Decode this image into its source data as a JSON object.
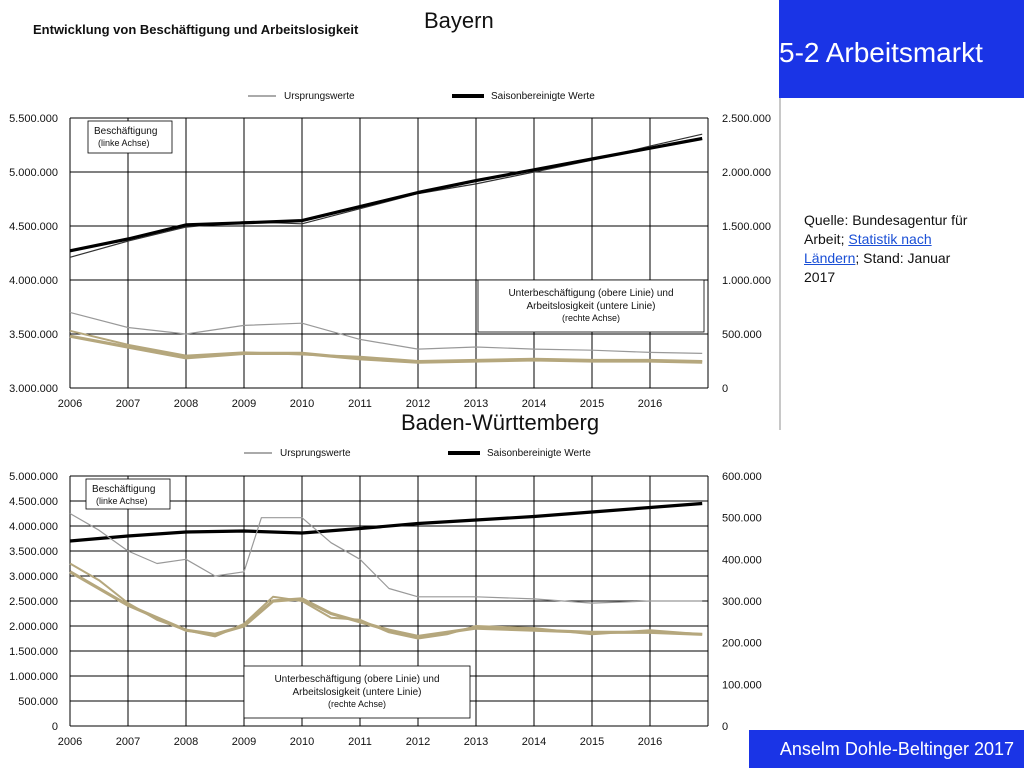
{
  "slide": {
    "title": "5-2 Arbeitsmarkt",
    "footer": "Anselm Dohle-Beltinger 2017",
    "source": {
      "prefix": "Quelle: Bundesagentur für Arbeit; ",
      "link": "Statistik nach Ländern",
      "suffix": "; Stand: Januar 2017"
    },
    "colors": {
      "accent": "#1a34e6",
      "link": "#1a4fd6"
    }
  },
  "chart_data": [
    {
      "type": "line",
      "region": "Bayern",
      "sheet_title": "Entwicklung von Beschäftigung und Arbeitslosigkeit",
      "legend": {
        "original": "Ursprungswerte",
        "adjusted": "Saisonbereinigte Werte"
      },
      "annotation_left": {
        "title": "Beschäftigung",
        "sub": "(linke Achse)"
      },
      "annotation_right": {
        "line1": "Unterbeschäftigung (obere Linie) und",
        "line2": "Arbeitslosigkeit (untere Linie)",
        "sub": "(rechte Achse)"
      },
      "x_ticks": [
        "2006",
        "2007",
        "2008",
        "2009",
        "2010",
        "2011",
        "2012",
        "2013",
        "2014",
        "2015",
        "2016"
      ],
      "xlim": [
        2006,
        2017
      ],
      "left_axis": {
        "ylim": [
          3000000,
          5500000
        ],
        "ticks": [
          "3.000.000",
          "3.500.000",
          "4.000.000",
          "4.500.000",
          "5.000.000",
          "5.500.000"
        ]
      },
      "right_axis": {
        "ylim": [
          0,
          2500000
        ],
        "ticks": [
          "0",
          "500.000",
          "1.000.000",
          "1.500.000",
          "2.000.000",
          "2.500.000"
        ]
      },
      "colors": {
        "employment": "#000000",
        "underemployment": "#999999",
        "unemployment": "#b5a77d"
      },
      "series": [
        {
          "name": "Beschäftigung",
          "axis": "left",
          "x": [
            2006.0,
            2007.0,
            2008.0,
            2009.0,
            2010.0,
            2011.0,
            2012.0,
            2013.0,
            2014.0,
            2015.0,
            2016.0,
            2016.9
          ],
          "adjusted": [
            4270000,
            4380000,
            4510000,
            4530000,
            4550000,
            4680000,
            4810000,
            4920000,
            5020000,
            5120000,
            5220000,
            5310000
          ],
          "original": [
            4210000,
            4360000,
            4490000,
            4540000,
            4520000,
            4660000,
            4800000,
            4890000,
            5000000,
            5110000,
            5240000,
            5350000
          ]
        },
        {
          "name": "Unterbeschäftigung",
          "axis": "right",
          "x": [
            2006.0,
            2007.0,
            2008.0,
            2009.0,
            2010.0,
            2011.0,
            2012.0,
            2013.0,
            2014.0,
            2015.0,
            2016.0,
            2016.9
          ],
          "original": [
            700000,
            560000,
            500000,
            580000,
            600000,
            450000,
            360000,
            380000,
            360000,
            350000,
            330000,
            320000
          ]
        },
        {
          "name": "Arbeitslosigkeit",
          "axis": "right",
          "x": [
            2006.0,
            2007.0,
            2008.0,
            2009.0,
            2010.0,
            2011.0,
            2012.0,
            2013.0,
            2014.0,
            2015.0,
            2016.0,
            2016.9
          ],
          "adjusted": [
            480000,
            380000,
            280000,
            320000,
            320000,
            270000,
            240000,
            250000,
            260000,
            250000,
            250000,
            240000
          ],
          "original": [
            530000,
            400000,
            300000,
            330000,
            310000,
            290000,
            250000,
            260000,
            270000,
            260000,
            260000,
            250000
          ]
        }
      ]
    },
    {
      "type": "line",
      "region": "Baden-Württemberg",
      "legend": {
        "original": "Ursprungswerte",
        "adjusted": "Saisonbereinigte Werte"
      },
      "annotation_left": {
        "title": "Beschäftigung",
        "sub": "(linke Achse)"
      },
      "annotation_right": {
        "line1": "Unterbeschäftigung (obere Linie) und",
        "line2": "Arbeitslosigkeit (untere Linie)",
        "sub": "(rechte Achse)"
      },
      "x_ticks": [
        "2006",
        "2007",
        "2008",
        "2009",
        "2010",
        "2011",
        "2012",
        "2013",
        "2014",
        "2015",
        "2016"
      ],
      "xlim": [
        2006,
        2017
      ],
      "left_axis": {
        "ylim": [
          0,
          5000000
        ],
        "ticks": [
          "0",
          "500.000",
          "1.000.000",
          "1.500.000",
          "2.000.000",
          "2.500.000",
          "3.000.000",
          "3.500.000",
          "4.000.000",
          "4.500.000",
          "5.000.000"
        ]
      },
      "right_axis": {
        "ylim": [
          0,
          600000
        ],
        "ticks": [
          "0",
          "100.000",
          "200.000",
          "300.000",
          "400.000",
          "500.000",
          "600.000"
        ]
      },
      "colors": {
        "employment": "#000000",
        "underemployment": "#999999",
        "unemployment": "#b5a77d"
      },
      "series": [
        {
          "name": "Beschäftigung",
          "axis": "left",
          "x": [
            2006.0,
            2007.0,
            2008.0,
            2009.0,
            2010.0,
            2011.0,
            2012.0,
            2013.0,
            2014.0,
            2015.0,
            2016.0,
            2016.9
          ],
          "adjusted": [
            3700000,
            3800000,
            3880000,
            3900000,
            3860000,
            3950000,
            4050000,
            4120000,
            4190000,
            4280000,
            4370000,
            4450000
          ]
        },
        {
          "name": "Unterbeschäftigung",
          "axis": "right",
          "x": [
            2006.0,
            2006.5,
            2007.0,
            2007.5,
            2008.0,
            2008.5,
            2009.0,
            2009.3,
            2009.6,
            2010.0,
            2010.5,
            2011.0,
            2011.5,
            2012.0,
            2013.0,
            2014.0,
            2015.0,
            2016.0,
            2016.9
          ],
          "original": [
            510000,
            470000,
            420000,
            390000,
            400000,
            360000,
            370000,
            500000,
            500000,
            500000,
            440000,
            400000,
            330000,
            310000,
            310000,
            305000,
            295000,
            300000,
            300000
          ]
        },
        {
          "name": "Arbeitslosigkeit",
          "axis": "right",
          "x": [
            2006.0,
            2006.5,
            2007.0,
            2007.5,
            2008.0,
            2008.5,
            2009.0,
            2009.5,
            2010.0,
            2010.5,
            2011.0,
            2011.5,
            2012.0,
            2012.5,
            2013.0,
            2014.0,
            2015.0,
            2016.0,
            2016.9
          ],
          "adjusted": [
            370000,
            330000,
            290000,
            260000,
            230000,
            220000,
            240000,
            300000,
            305000,
            270000,
            250000,
            230000,
            215000,
            225000,
            235000,
            230000,
            225000,
            225000,
            220000
          ],
          "original": [
            390000,
            350000,
            295000,
            255000,
            230000,
            215000,
            245000,
            310000,
            300000,
            260000,
            255000,
            225000,
            210000,
            220000,
            240000,
            235000,
            220000,
            230000,
            220000
          ]
        }
      ]
    }
  ]
}
